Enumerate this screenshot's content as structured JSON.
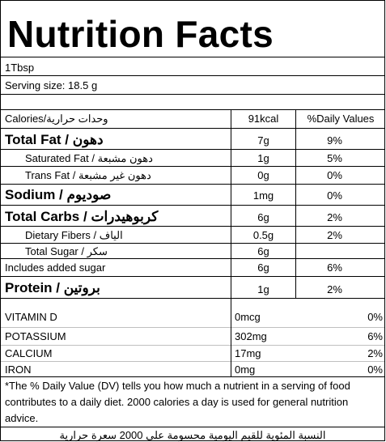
{
  "title": "Nutrition Facts",
  "serving_unit": "1Tbsp",
  "serving_size": "Serving size: 18.5 g",
  "header": {
    "calories_label": "Calories/",
    "calories_label_ar": "وحدات حرارية",
    "calories_value": "91kcal",
    "daily_values_label": "%Daily Values"
  },
  "nutrients": {
    "total_fat": {
      "label": "Total Fat / ",
      "label_ar": "دهون",
      "amount": "7g",
      "dv": "9%"
    },
    "saturated_fat": {
      "label": "Saturated Fat / ",
      "label_ar": "دهون مشبعة",
      "amount": "1g",
      "dv": "5%"
    },
    "trans_fat": {
      "label": "Trans Fat / ",
      "label_ar": "دهون غير مشبعة",
      "amount": "0g",
      "dv": "0%"
    },
    "sodium": {
      "label": "Sodium / ",
      "label_ar": "صوديوم",
      "amount": "1mg",
      "dv": "0%"
    },
    "total_carbs": {
      "label": "Total Carbs / ",
      "label_ar": "كربوهيدرات",
      "amount": "6g",
      "dv": "2%"
    },
    "dietary_fibers": {
      "label": "Dietary Fibers / ",
      "label_ar": "الياف",
      "amount": "0.5g",
      "dv": "2%"
    },
    "total_sugar": {
      "label": "Total Sugar / ",
      "label_ar": "سكر",
      "amount": "6g",
      "dv": ""
    },
    "added_sugar": {
      "label": "Includes added sugar",
      "amount": "6g",
      "dv": "6%"
    },
    "protein": {
      "label": "Protein / ",
      "label_ar": "بروتين",
      "amount": "1g",
      "dv": "2%"
    }
  },
  "minerals": [
    {
      "name": "VITAMIN D",
      "amount": "0mcg",
      "dv": "0%"
    },
    {
      "name": "POTASSIUM",
      "amount": "302mg",
      "dv": "6%"
    },
    {
      "name": "CALCIUM",
      "amount": "17mg",
      "dv": "2%"
    },
    {
      "name": "IRON",
      "amount": "0mg",
      "dv": "0%"
    }
  ],
  "footnote": "*The % Daily Value (DV) tells you how much a nutrient in a serving of food contributes to a daily diet. 2000 calories a day is used for general nutrition advice.",
  "footnote_ar": "النسبة المئوية للقيم اليومية محسومة على 2000 سعرة حرارية"
}
